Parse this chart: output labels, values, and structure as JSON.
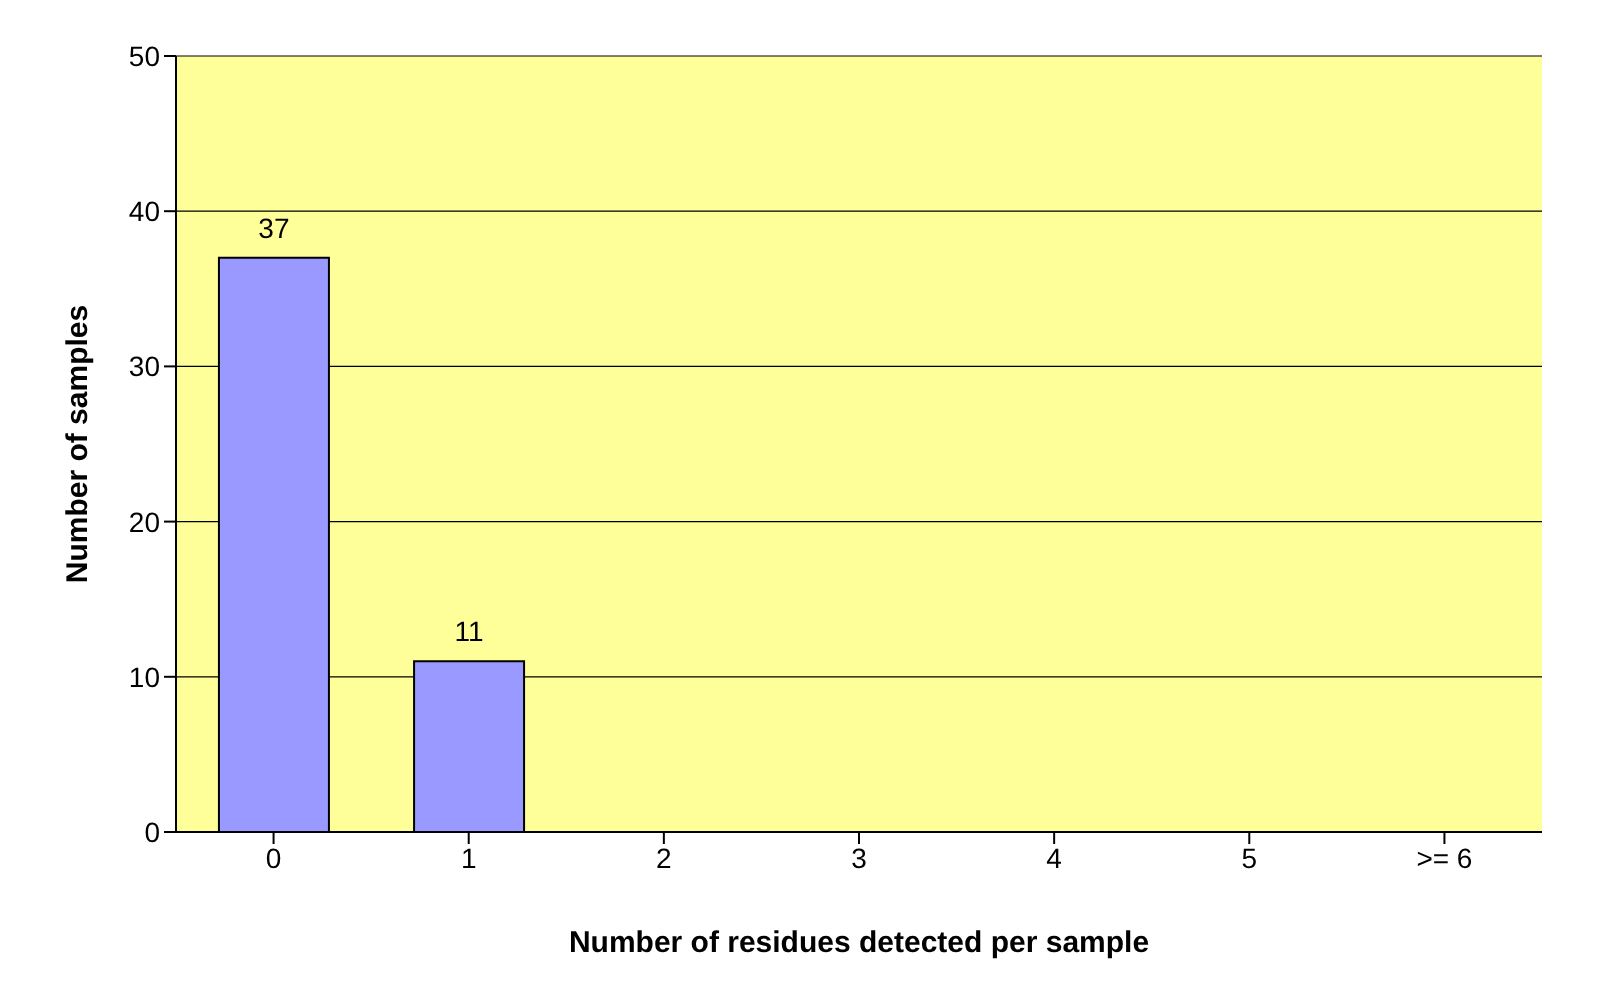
{
  "chart_data": {
    "type": "bar",
    "xlabel": "Number of residues detected per sample",
    "ylabel": "Number of samples",
    "categories": [
      "0",
      "1",
      "2",
      "3",
      "4",
      "5",
      ">= 6"
    ],
    "values": [
      37,
      11,
      0,
      0,
      0,
      0,
      0
    ],
    "value_labels": [
      "37",
      "11",
      null,
      null,
      null,
      null,
      null
    ],
    "color": "#9999ff",
    "ylim": [
      0,
      50
    ],
    "yticks": [
      0,
      10,
      20,
      30,
      40,
      50
    ],
    "grid": "y"
  }
}
